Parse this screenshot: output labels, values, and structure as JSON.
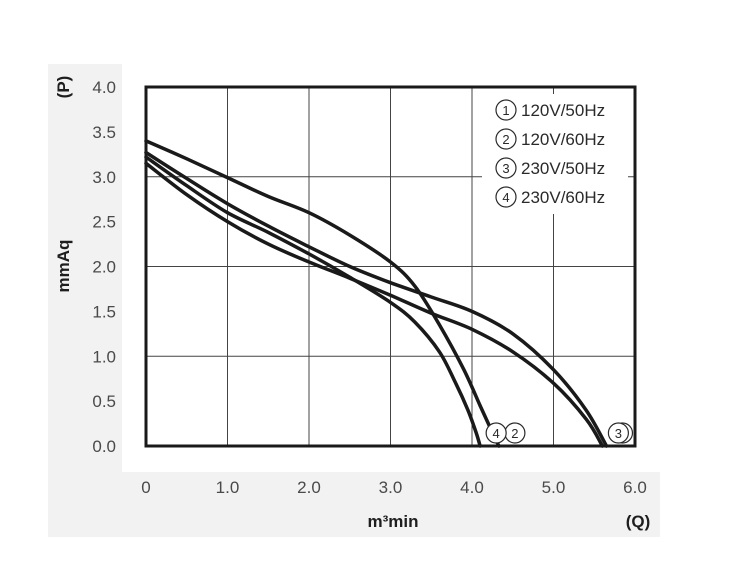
{
  "chart_data": {
    "type": "line",
    "xlabel": "m³min",
    "x_unit": "(Q)",
    "ylabel": "mmAq",
    "y_unit": "(P)",
    "xlim": [
      0,
      6.0
    ],
    "ylim": [
      0,
      4.0
    ],
    "x_ticks": [
      "0",
      "1.0",
      "2.0",
      "3.0",
      "4.0",
      "5.0",
      "6.0"
    ],
    "y_ticks": [
      "4.0",
      "3.5",
      "3.0",
      "2.5",
      "2.0",
      "1.5",
      "1.0",
      "0.5",
      "0.0"
    ],
    "grid": true,
    "legend_position": "top-right",
    "line_color": "#1a1a1a",
    "background_color": "#f2f2f2",
    "series": [
      {
        "name": "120V/50Hz",
        "marker": "1",
        "x": [
          0,
          0.5,
          1.0,
          1.5,
          2.0,
          2.5,
          3.0,
          3.5,
          4.0,
          4.5,
          5.0,
          5.4,
          5.65
        ],
        "y": [
          3.27,
          2.98,
          2.7,
          2.45,
          2.22,
          2.0,
          1.82,
          1.66,
          1.5,
          1.25,
          0.85,
          0.4,
          0.0
        ]
      },
      {
        "name": "120V/60Hz",
        "marker": "2",
        "x": [
          0,
          0.5,
          1.0,
          1.5,
          2.0,
          2.5,
          3.0,
          3.3,
          3.6,
          3.9,
          4.1,
          4.25,
          4.33
        ],
        "y": [
          3.4,
          3.2,
          2.99,
          2.78,
          2.6,
          2.35,
          2.05,
          1.78,
          1.35,
          0.85,
          0.45,
          0.15,
          0.0
        ]
      },
      {
        "name": "230V/50Hz",
        "marker": "3",
        "x": [
          0,
          0.5,
          1.0,
          1.5,
          2.0,
          2.5,
          3.0,
          3.5,
          4.0,
          4.5,
          5.0,
          5.4,
          5.6
        ],
        "y": [
          3.15,
          2.8,
          2.5,
          2.25,
          2.05,
          1.87,
          1.68,
          1.48,
          1.3,
          1.05,
          0.7,
          0.3,
          0.0
        ]
      },
      {
        "name": "230V/60Hz",
        "marker": "4",
        "x": [
          0,
          0.5,
          1.0,
          1.5,
          2.0,
          2.5,
          3.0,
          3.3,
          3.6,
          3.8,
          3.95,
          4.05,
          4.1
        ],
        "y": [
          3.22,
          2.9,
          2.6,
          2.38,
          2.14,
          1.88,
          1.6,
          1.38,
          1.05,
          0.7,
          0.4,
          0.15,
          0.0
        ]
      }
    ]
  }
}
